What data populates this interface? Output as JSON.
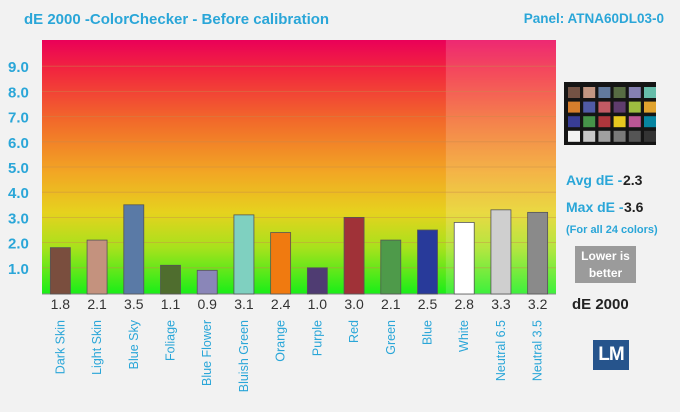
{
  "header": {
    "title": "dE 2000 -ColorChecker - Before calibration",
    "panel": "Panel: ATNA60DL03-0"
  },
  "stats": {
    "avg_label": "Avg dE -",
    "avg_value": "2.3",
    "max_label": "Max dE -",
    "max_value": "3.6",
    "note": "(For all 24 colors)",
    "lower_line1": "Lower is",
    "lower_line2": "better"
  },
  "unit_label": "dE 2000",
  "logo_text": "LM",
  "colorchecker_swatches": [
    "#735244",
    "#c29682",
    "#627a9d",
    "#576c43",
    "#8580b1",
    "#67bdaa",
    "#d67e2c",
    "#505ba6",
    "#c15a63",
    "#5e3c6c",
    "#9dbc40",
    "#e0a32e",
    "#383d96",
    "#469449",
    "#af363c",
    "#e7c71f",
    "#bb5695",
    "#0885a1",
    "#f3f3f2",
    "#c8c8c8",
    "#a0a0a0",
    "#7a7a79",
    "#555555",
    "#343434"
  ],
  "chart_data": {
    "type": "bar",
    "title": "dE 2000 -ColorChecker - Before calibration",
    "ylabel": "",
    "xlabel": "",
    "ylim": [
      0,
      9.8
    ],
    "yticks": [
      1.0,
      2.0,
      3.0,
      4.0,
      5.0,
      6.0,
      7.0,
      8.0,
      9.0
    ],
    "ytick_labels": [
      "1.0",
      "2.0",
      "3.0",
      "4.0",
      "5.0",
      "6.0",
      "7.0",
      "8.0",
      "9.0"
    ],
    "grid": true,
    "categories": [
      "Dark Skin",
      "Light Skin",
      "Blue Sky",
      "Foliage",
      "Blue Flower",
      "Bluish Green",
      "Orange",
      "Purple",
      "Red",
      "Green",
      "Blue",
      "White",
      "Neutral 6.5",
      "Neutral 3.5"
    ],
    "values": [
      1.8,
      2.1,
      3.5,
      1.1,
      0.9,
      3.1,
      2.4,
      1.0,
      3.0,
      2.1,
      2.5,
      2.8,
      3.3,
      3.2
    ],
    "value_labels": [
      "1.8",
      "2.1",
      "3.5",
      "1.1",
      "0.9",
      "3.1",
      "2.4",
      "1.0",
      "3.0",
      "2.1",
      "2.5",
      "2.8",
      "3.3",
      "3.2"
    ],
    "bar_colors": [
      "#7a4e3e",
      "#c4927e",
      "#5a7aa6",
      "#4f6d2e",
      "#8a86b8",
      "#7fd0c0",
      "#f07a10",
      "#4f3c72",
      "#a03238",
      "#4e9a4a",
      "#283a9a",
      "#ffffff",
      "#cfcfcf",
      "#8a8a8a"
    ]
  }
}
